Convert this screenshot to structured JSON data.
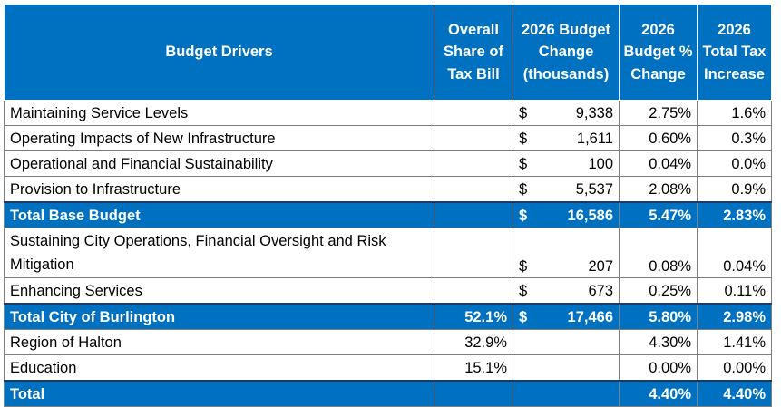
{
  "table": {
    "headers": {
      "drivers": "Budget Drivers",
      "share": "Overall Share of Tax Bill",
      "change": "2026 Budget Change (thousands)",
      "pct": "2026 Budget % Change",
      "tax": "2026 Total Tax Increase"
    },
    "rows": [
      {
        "label": "Maintaining Service Levels",
        "share": "",
        "dollar": "$",
        "change": "9,338",
        "pct": "2.75%",
        "tax": "1.6%"
      },
      {
        "label": "Operating Impacts of New Infrastructure",
        "share": "",
        "dollar": "$",
        "change": "1,611",
        "pct": "0.60%",
        "tax": "0.3%"
      },
      {
        "label": "Operational and Financial Sustainability",
        "share": "",
        "dollar": "$",
        "change": "100",
        "pct": "0.04%",
        "tax": "0.0%"
      },
      {
        "label": "Provision to Infrastructure",
        "share": "",
        "dollar": "$",
        "change": "5,537",
        "pct": "2.08%",
        "tax": "0.9%"
      },
      {
        "label": "Total Base Budget",
        "share": "",
        "dollar": "$",
        "change": "16,586",
        "pct": "5.47%",
        "tax": "2.83%",
        "total": true
      },
      {
        "label": "Sustaining City Operations, Financial Oversight and Risk Mitigation",
        "share": "",
        "dollar": "$",
        "change": "207",
        "pct": "0.08%",
        "tax": "0.04%",
        "tall": true
      },
      {
        "label": "Enhancing Services",
        "share": "",
        "dollar": "$",
        "change": "673",
        "pct": "0.25%",
        "tax": "0.11%"
      },
      {
        "label": "Total City of Burlington",
        "share": "52.1%",
        "dollar": "$",
        "change": "17,466",
        "pct": "5.80%",
        "tax": "2.98%",
        "total": true
      },
      {
        "label": "Region of Halton",
        "share": "32.9%",
        "dollar": "",
        "change": "",
        "pct": "4.30%",
        "tax": "1.41%"
      },
      {
        "label": "Education",
        "share": "15.1%",
        "dollar": "",
        "change": "",
        "pct": "0.00%",
        "tax": "0.00%"
      },
      {
        "label": "Total",
        "share": "",
        "dollar": "",
        "change": "",
        "pct": "4.40%",
        "tax": "4.40%",
        "total": true
      }
    ]
  }
}
